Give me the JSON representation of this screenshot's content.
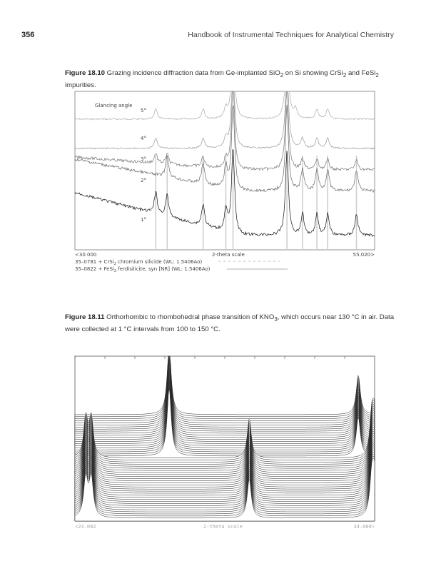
{
  "header": {
    "page_number": "356",
    "running_title": "Handbook of Instrumental Techniques for Analytical Chemistry"
  },
  "figure_10": {
    "label": "Figure 18.10",
    "caption_pre": "Grazing incidence diffraction data from Ge-implanted SiO",
    "caption_sub1": "2",
    "caption_mid": " on Si showing CrSi",
    "caption_sub2": "2",
    "caption_and": " and FeSi",
    "caption_sub3": "2",
    "caption_post": " impurities.",
    "chart_data": {
      "type": "line",
      "title": "",
      "legend_title": "Glancing angle",
      "xlabel": "2-theta scale",
      "xmin_label": "<30.000",
      "xmax_label": "55.020>",
      "xlim": [
        30.0,
        55.02
      ],
      "series": [
        {
          "name": "5°",
          "peaks": [
            36.75,
            40.7,
            42.6,
            43.2,
            47.7,
            48.4,
            50.2,
            51.1
          ]
        },
        {
          "name": "4°",
          "peaks": [
            36.75,
            40.7,
            42.6,
            43.2,
            47.7,
            49.0,
            50.2,
            51.1
          ]
        },
        {
          "name": "3°",
          "peaks": [
            36.75,
            37.7,
            40.7,
            42.6,
            43.2,
            47.7,
            49.0,
            50.2,
            51.1,
            53.5
          ]
        },
        {
          "name": "2°",
          "peaks": [
            37.7,
            40.7,
            42.6,
            43.2,
            47.7,
            49.0,
            50.2,
            51.1,
            53.5
          ]
        },
        {
          "name": "1°",
          "peaks": [
            36.75,
            37.7,
            40.7,
            42.6,
            43.2,
            47.7,
            49.0,
            50.2,
            51.1,
            53.5
          ]
        }
      ],
      "reference_lines": [
        36.75,
        37.7,
        40.7,
        42.6,
        43.2,
        47.7,
        49.0,
        50.2,
        51.1,
        53.5
      ],
      "legend": [
        {
          "text": "35–0781 + CrSi",
          "sub": "2",
          "rest": " chromium silicide (WL: 1.5406Ao)",
          "style": "dashed"
        },
        {
          "text": "35–0822 + FeSi",
          "sub": "2",
          "rest": " ferdisilicite, syn [NR] (WL: 1.5406Ao)",
          "style": "solid"
        }
      ]
    }
  },
  "figure_11": {
    "label": "Figure 18.11",
    "caption_pre": "Orthorhombic to rhombohedral phase transition of KNO",
    "caption_sub": "3",
    "caption_post": ", which occurs near 130 °C in air. Data were collected at 1 °C intervals from 100 to 150 °C.",
    "chart_data": {
      "type": "line",
      "title": "",
      "xlabel": "2-theta scale",
      "xmin_label": "<23.002",
      "xmax_label": "34.000>",
      "xlim": [
        23.002,
        34.0
      ],
      "temperature_range_C": [
        100,
        150
      ],
      "interval_C": 1,
      "transition_C": 130,
      "low_phase_peaks": [
        23.4,
        23.6,
        29.4,
        33.9,
        34.0
      ],
      "high_phase_peaks": [
        26.46,
        33.4
      ]
    }
  }
}
